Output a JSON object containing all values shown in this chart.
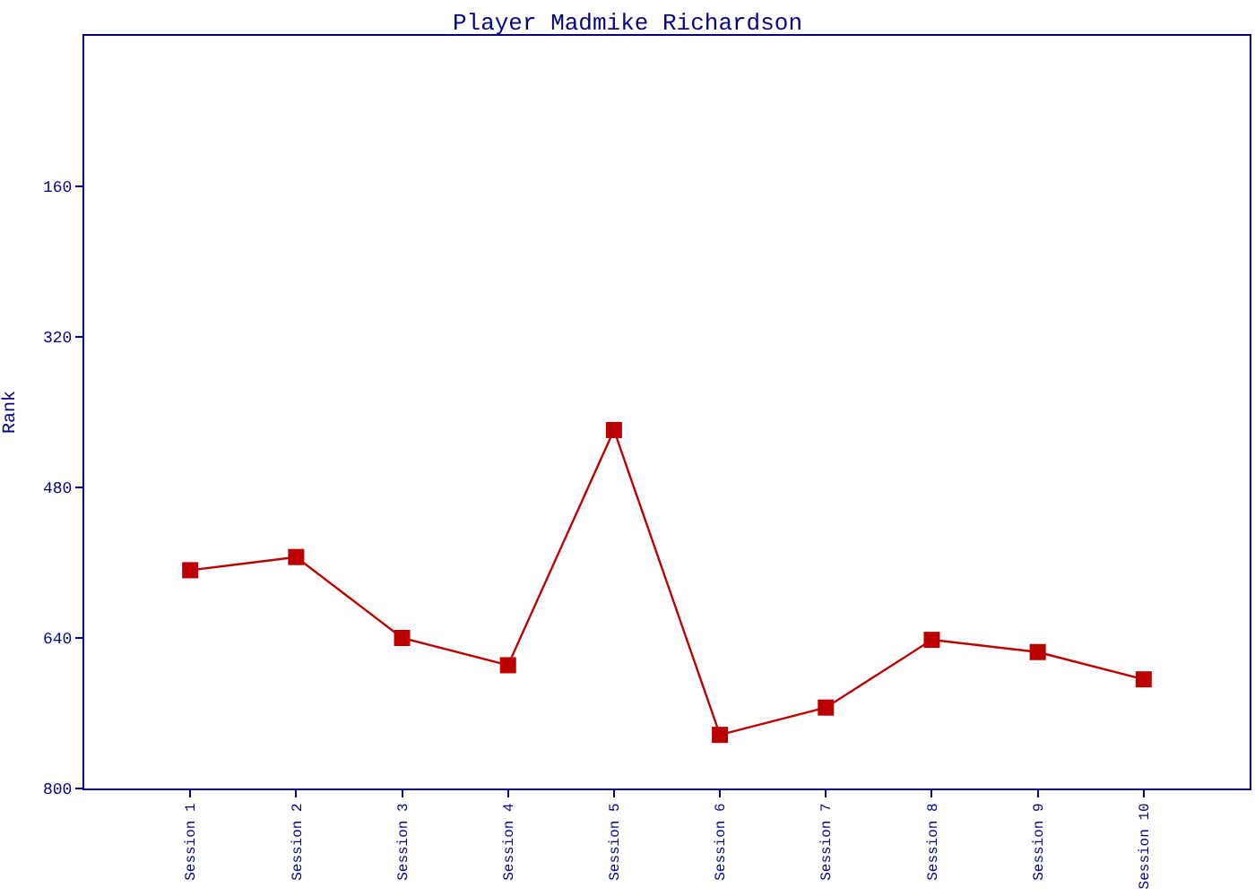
{
  "chart_data": {
    "type": "line",
    "title": "Player Madmike Richardson",
    "ylabel": "Rank",
    "categories": [
      "Session 1",
      "Session 2",
      "Session 3",
      "Session 4",
      "Session 5",
      "Session 6",
      "Session 7",
      "Session 8",
      "Session 9",
      "Session 10"
    ],
    "series": [
      {
        "color": "#bb0000",
        "values": [
          568,
          554,
          640,
          669,
          419,
          743,
          714,
          642,
          655,
          684
        ]
      }
    ],
    "ylim": [
      800,
      0
    ],
    "yticks": [
      160,
      320,
      480,
      640,
      800
    ],
    "marker": "square",
    "line_style": "solid"
  }
}
